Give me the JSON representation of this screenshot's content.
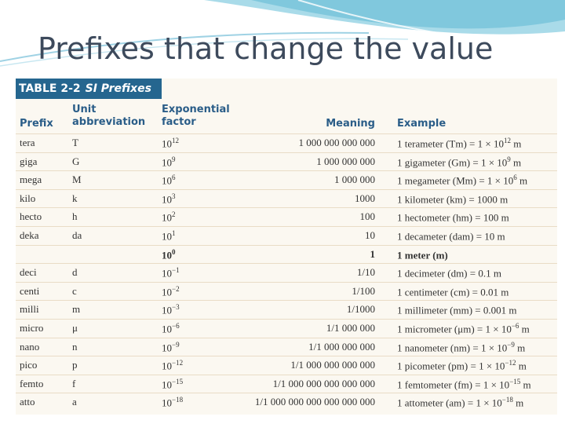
{
  "slide": {
    "title": "Prefixes that change the value"
  },
  "table": {
    "label": "TABLE 2-2",
    "name": "SI Prefixes",
    "headers": {
      "prefix": "Prefix",
      "abbr_1": "Unit",
      "abbr_2": "abbreviation",
      "exp_1": "Exponential",
      "exp_2": "factor",
      "meaning": "Meaning",
      "example": "Example"
    },
    "rows": [
      {
        "prefix": "tera",
        "abbr": "T",
        "base": "10",
        "exp": "12",
        "meaning": "1 000 000 000 000",
        "example": "1 terameter (Tm) = 1 × 10",
        "ex_exp": "12",
        "ex_unit": " m"
      },
      {
        "prefix": "giga",
        "abbr": "G",
        "base": "10",
        "exp": "9",
        "meaning": "1 000 000 000",
        "example": "1 gigameter (Gm) = 1 × 10",
        "ex_exp": "9",
        "ex_unit": " m"
      },
      {
        "prefix": "mega",
        "abbr": "M",
        "base": "10",
        "exp": "6",
        "meaning": "1 000 000",
        "example": "1 megameter (Mm) = 1 × 10",
        "ex_exp": "6",
        "ex_unit": " m"
      },
      {
        "prefix": "kilo",
        "abbr": "k",
        "base": "10",
        "exp": "3",
        "meaning": "1000",
        "example": "1 kilometer (km) = 1000 m",
        "ex_exp": "",
        "ex_unit": ""
      },
      {
        "prefix": "hecto",
        "abbr": "h",
        "base": "10",
        "exp": "2",
        "meaning": "100",
        "example": "1 hectometer (hm) = 100 m",
        "ex_exp": "",
        "ex_unit": ""
      },
      {
        "prefix": "deka",
        "abbr": "da",
        "base": "10",
        "exp": "1",
        "meaning": "10",
        "example": "1 decameter (dam) = 10 m",
        "ex_exp": "",
        "ex_unit": ""
      },
      {
        "prefix": "",
        "abbr": "",
        "base": "10",
        "exp": "0",
        "meaning": "1",
        "example": "1 meter (m)",
        "ex_exp": "",
        "ex_unit": "",
        "bold": true
      },
      {
        "prefix": "deci",
        "abbr": "d",
        "base": "10",
        "exp": "−1",
        "meaning": "1/10",
        "example": "1 decimeter (dm) = 0.1 m",
        "ex_exp": "",
        "ex_unit": ""
      },
      {
        "prefix": "centi",
        "abbr": "c",
        "base": "10",
        "exp": "−2",
        "meaning": "1/100",
        "example": "1 centimeter (cm) = 0.01 m",
        "ex_exp": "",
        "ex_unit": ""
      },
      {
        "prefix": "milli",
        "abbr": "m",
        "base": "10",
        "exp": "−3",
        "meaning": "1/1000",
        "example": "1 millimeter (mm) = 0.001 m",
        "ex_exp": "",
        "ex_unit": ""
      },
      {
        "prefix": "micro",
        "abbr": "μ",
        "base": "10",
        "exp": "−6",
        "meaning": "1/1 000 000",
        "example": "1 micrometer (μm) = 1 × 10",
        "ex_exp": "−6",
        "ex_unit": " m"
      },
      {
        "prefix": "nano",
        "abbr": "n",
        "base": "10",
        "exp": "−9",
        "meaning": "1/1 000 000 000",
        "example": "1 nanometer (nm) = 1 × 10",
        "ex_exp": "−9",
        "ex_unit": " m"
      },
      {
        "prefix": "pico",
        "abbr": "p",
        "base": "10",
        "exp": "−12",
        "meaning": "1/1 000 000 000 000",
        "example": "1 picometer (pm) = 1 × 10",
        "ex_exp": "−12",
        "ex_unit": " m"
      },
      {
        "prefix": "femto",
        "abbr": "f",
        "base": "10",
        "exp": "−15",
        "meaning": "1/1 000 000 000 000 000",
        "example": "1 femtometer (fm) = 1 × 10",
        "ex_exp": "−15",
        "ex_unit": " m"
      },
      {
        "prefix": "atto",
        "abbr": "a",
        "base": "10",
        "exp": "−18",
        "meaning": "1/1 000 000 000 000 000 000",
        "example": "1 attometer (am) = 1 × 10",
        "ex_exp": "−18",
        "ex_unit": " m"
      }
    ]
  }
}
